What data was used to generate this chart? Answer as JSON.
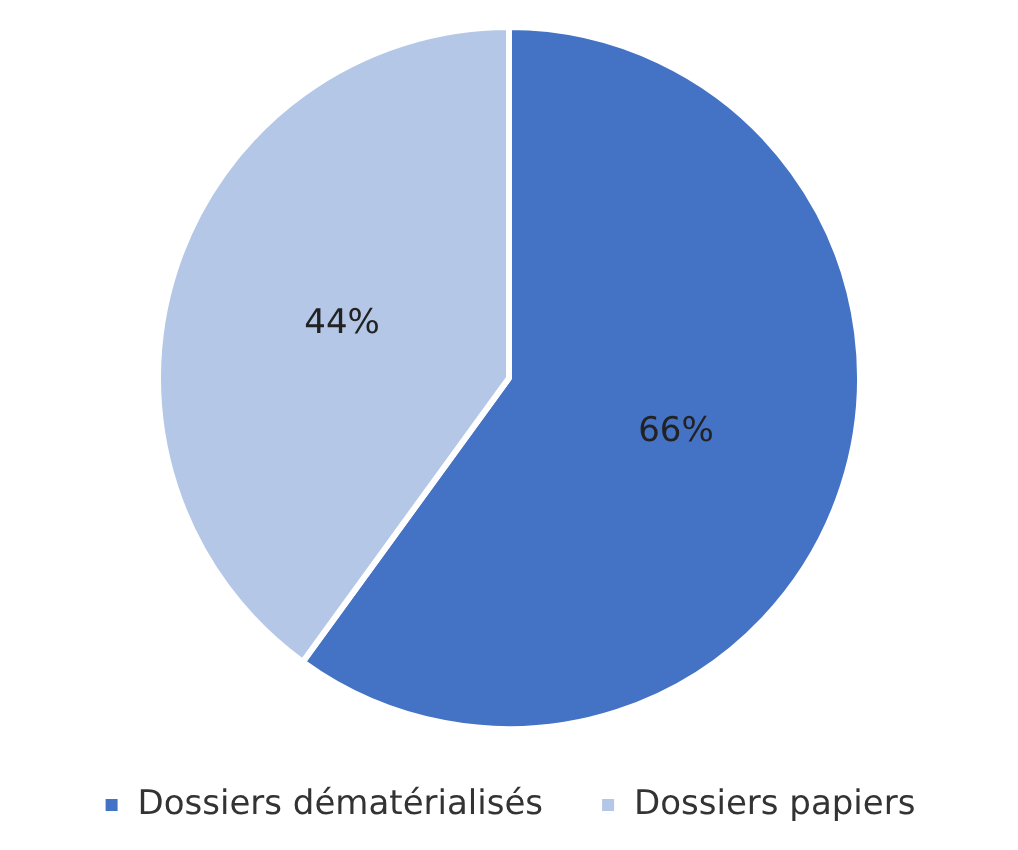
{
  "chart_data": {
    "type": "pie",
    "categories": [
      "Dossiers dématérialisés",
      "Dossiers papiers"
    ],
    "values": [
      66,
      44
    ],
    "colors": [
      "#4472c4",
      "#b4c7e7"
    ],
    "value_labels": [
      "66%",
      "44%"
    ],
    "legend": "bottom"
  }
}
